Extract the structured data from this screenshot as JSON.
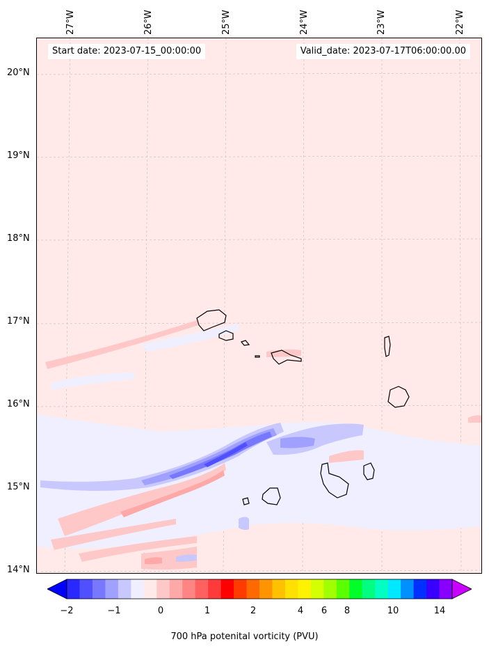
{
  "map": {
    "start_label": "Start date: 2023-07-15_00:00:00",
    "valid_label": "Valid_date: 2023-07-17T06:00:00.00",
    "lat_labels": [
      "20°N",
      "19°N",
      "18°N",
      "17°N",
      "16°N",
      "15°N",
      "14°N"
    ],
    "lon_labels": [
      "27°W",
      "26°W",
      "25°W",
      "24°W",
      "23°W",
      "22°W"
    ],
    "field": "700 hPa potential vorticity",
    "background_color": "#ffe9e9",
    "islands_outline_color": "#000000"
  },
  "colorbar": {
    "title": "700 hPa potenital vorticity (PVU)",
    "tick_labels": [
      "−2",
      "−1",
      "0",
      "1",
      "2",
      "4",
      "6",
      "8",
      "10",
      "14"
    ],
    "colors": [
      "#0000ff",
      "#2828ff",
      "#5050ff",
      "#7878ff",
      "#a0a0ff",
      "#c8c8ff",
      "#efefff",
      "#ffe9e9",
      "#ffc8c8",
      "#ffa8a8",
      "#ff8585",
      "#ff6060",
      "#ff3a3a",
      "#ff0000",
      "#ff3c00",
      "#ff6a00",
      "#ff9400",
      "#ffc000",
      "#ffe000",
      "#fff200",
      "#d4ff00",
      "#a0ff00",
      "#5aff00",
      "#00ff28",
      "#00ff80",
      "#00ffc0",
      "#00e8ff",
      "#0090ff",
      "#0030ff",
      "#3800ff",
      "#8800ff",
      "#c800ff"
    ]
  }
}
